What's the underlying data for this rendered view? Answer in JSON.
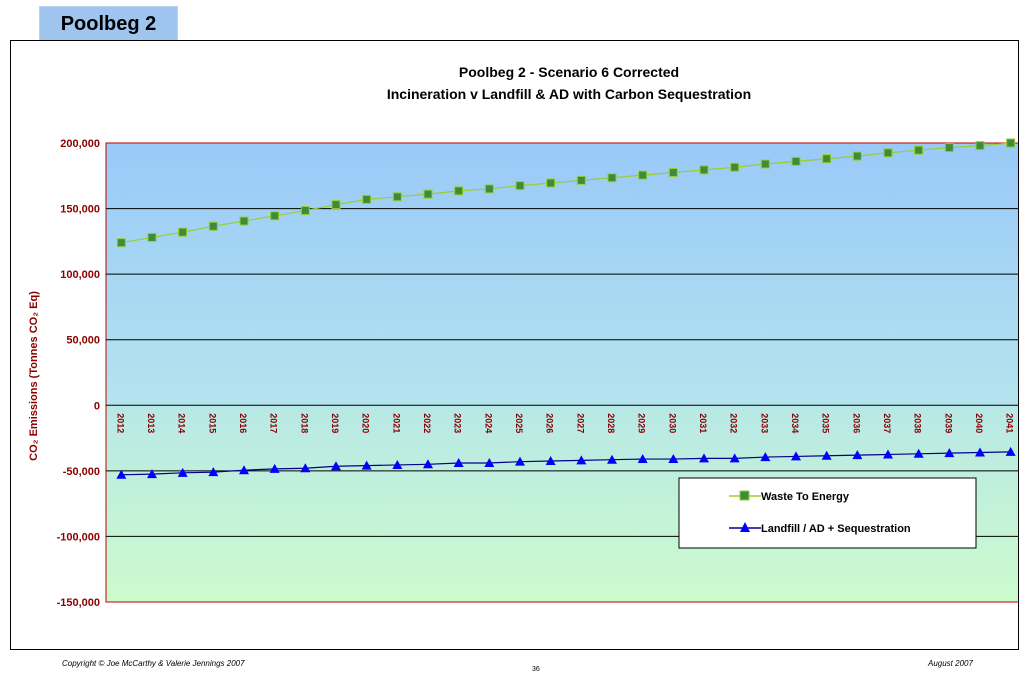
{
  "page": {
    "tab_title": "Poolbeg 2",
    "footer_left": "Copyright © Joe McCarthy & Valerie Jennings 2007",
    "footer_center": "36",
    "footer_right": "August 2007"
  },
  "chart_data": {
    "type": "line",
    "title": "Poolbeg 2 - Scenario 6 Corrected",
    "subtitle": "Incineration v Landfill & AD with Carbon Sequestration",
    "ylabel": "CO₂ Emissions (Tonnes CO₂ Eq)",
    "xlabel": "",
    "ylim": [
      -150000,
      200000
    ],
    "yticks": [
      200000,
      150000,
      100000,
      50000,
      0,
      -50000,
      -100000,
      -150000
    ],
    "ytick_labels": [
      "200,000",
      "150,000",
      "100,000",
      "50,000",
      "0",
      "-50,000",
      "-100,000",
      "-150,000"
    ],
    "grid": true,
    "legend_position": "bottom-right",
    "x": [
      "2012",
      "2013",
      "2014",
      "2015",
      "2016",
      "2017",
      "2018",
      "2019",
      "2020",
      "2021",
      "2022",
      "2023",
      "2024",
      "2025",
      "2026",
      "2027",
      "2028",
      "2029",
      "2030",
      "2031",
      "2032",
      "2033",
      "2034",
      "2035",
      "2036",
      "2037",
      "2038",
      "2039",
      "2040",
      "2041"
    ],
    "series": [
      {
        "name": "Waste To Energy",
        "color": "#9acd32",
        "marker": "square",
        "marker_color": "#3c8c3c",
        "values": [
          124000,
          128000,
          132000,
          136500,
          140500,
          144500,
          148500,
          153000,
          157000,
          159000,
          161000,
          163500,
          165000,
          167500,
          169500,
          171500,
          173500,
          175500,
          177500,
          179500,
          181500,
          184000,
          186000,
          188000,
          190000,
          192500,
          194500,
          196500,
          198000,
          200000
        ]
      },
      {
        "name": "Landfill / AD + Sequestration",
        "color": "#00008b",
        "marker": "triangle",
        "marker_color": "#0000ff",
        "values": [
          -53000,
          -52500,
          -51500,
          -51000,
          -49500,
          -48500,
          -48000,
          -46500,
          -46000,
          -45500,
          -45000,
          -44000,
          -44000,
          -43000,
          -42500,
          -42000,
          -41500,
          -41000,
          -41000,
          -40500,
          -40500,
          -39500,
          -39000,
          -38500,
          -38000,
          -37500,
          -37000,
          -36500,
          -36000,
          -35500
        ]
      }
    ]
  }
}
